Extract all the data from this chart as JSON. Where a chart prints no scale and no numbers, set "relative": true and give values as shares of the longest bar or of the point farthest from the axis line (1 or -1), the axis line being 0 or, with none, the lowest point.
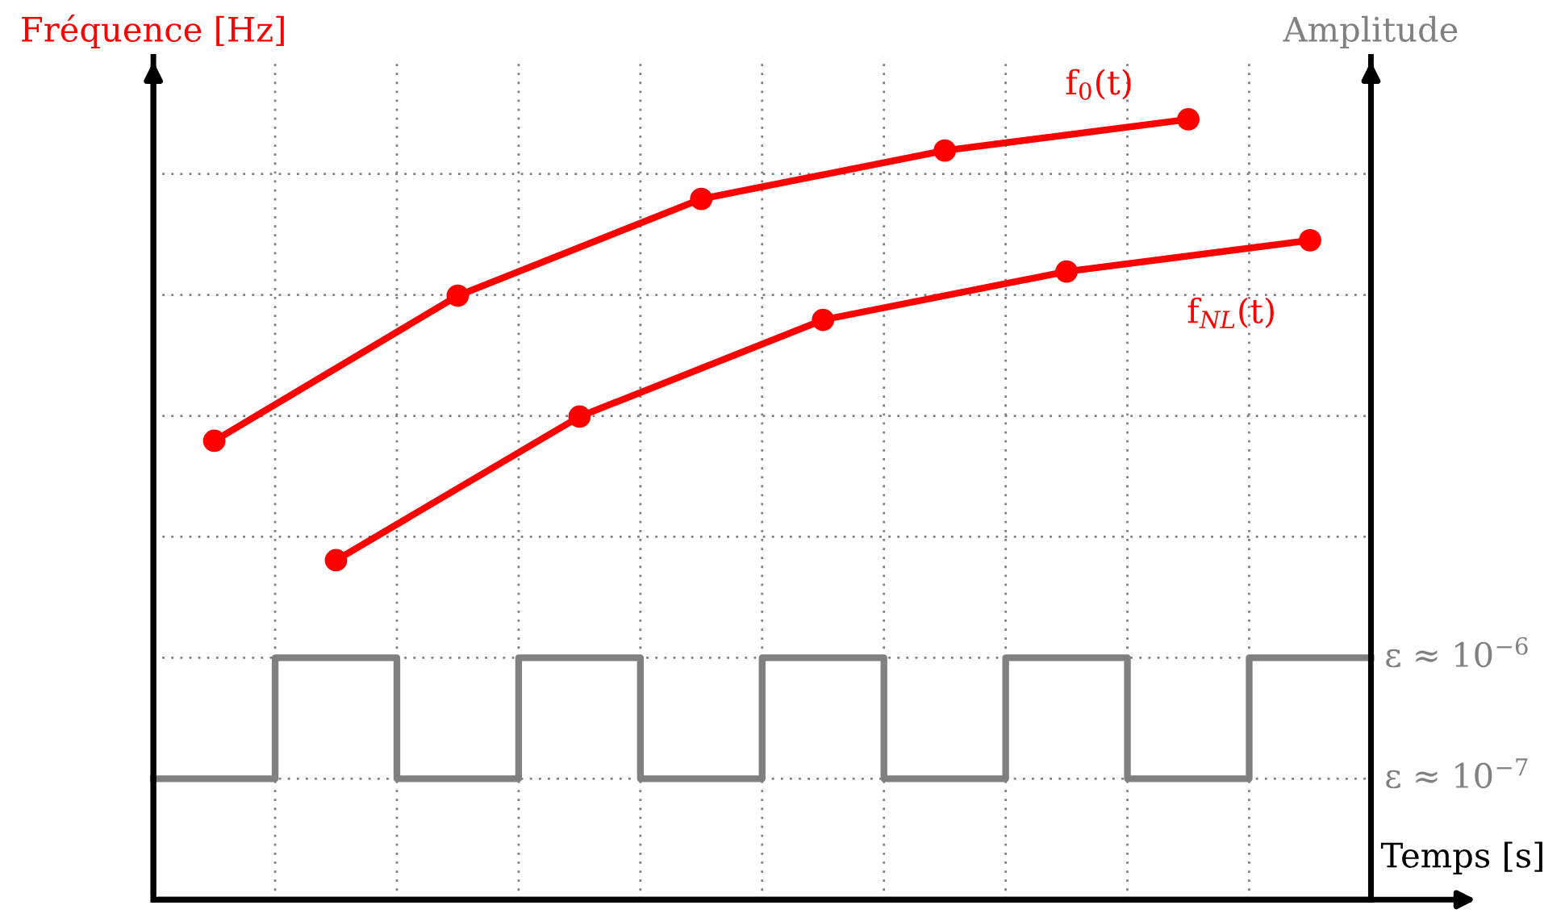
{
  "chart_data": {
    "type": "line",
    "relative": true,
    "xlabel": "Temps [s]",
    "ylabel": "Fréquence [Hz]",
    "y2label": "Amplitude",
    "categories": [
      null,
      null,
      null,
      null,
      null,
      null,
      null,
      null,
      null,
      null,
      null,
      null,
      null,
      null,
      null,
      null,
      null,
      null,
      null,
      null,
      null
    ],
    "annotations": [
      "ε ≈ 10$^{−6}$",
      "ε ≈ 10$^{−7}$"
    ],
    "grid": true,
    "marker": "circle",
    "line_style": "solid",
    "series": [
      {
        "name": "f$_{0}$(t)",
        "color": "#ff0000",
        "values": [
          null,
          0.588,
          null,
          null,
          null,
          0.774,
          null,
          null,
          null,
          0.898,
          null,
          null,
          null,
          0.96,
          null,
          null,
          null,
          1,
          null,
          null,
          null
        ]
      },
      {
        "name": "f$_{NL}$(t)",
        "color": "#ff0000",
        "values": [
          null,
          null,
          null,
          0.435,
          null,
          null,
          null,
          0.619,
          null,
          null,
          null,
          0.743,
          null,
          null,
          null,
          0.805,
          null,
          null,
          null,
          0.845,
          null
        ]
      },
      {
        "type": "step",
        "marker": "none",
        "color": "#808080",
        "values": [
          0.155,
          0.155,
          0.31,
          0.31,
          0.155,
          0.155,
          0.31,
          0.31,
          0.155,
          0.155,
          0.31,
          0.31,
          0.155,
          0.155,
          0.31,
          0.31,
          0.155,
          0.155,
          0.31,
          0.31,
          0.31
        ]
      }
    ]
  }
}
